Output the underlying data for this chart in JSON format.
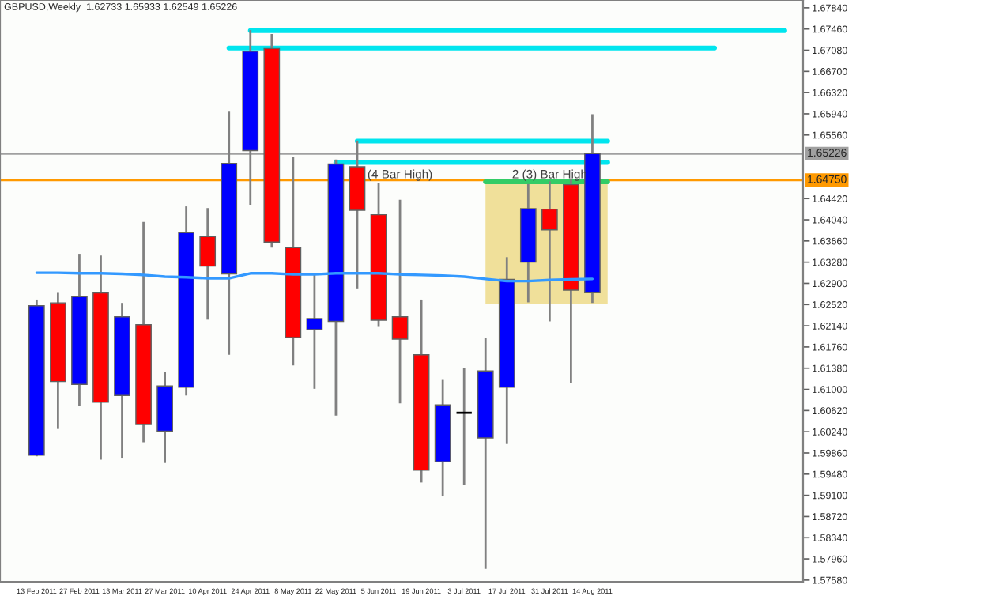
{
  "chart_data": {
    "type": "candlestick",
    "title": "GBPUSD,Weekly  1.62733 1.65933 1.62549 1.65226",
    "x": [
      "2011-02-13",
      "2011-02-20",
      "2011-02-27",
      "2011-03-06",
      "2011-03-13",
      "2011-03-20",
      "2011-03-27",
      "2011-04-03",
      "2011-04-10",
      "2011-04-17",
      "2011-04-24",
      "2011-05-01",
      "2011-05-08",
      "2011-05-15",
      "2011-05-22",
      "2011-05-29",
      "2011-06-05",
      "2011-06-12",
      "2011-06-19",
      "2011-06-26",
      "2011-07-03",
      "2011-07-10",
      "2011-07-17",
      "2011-07-24",
      "2011-07-31",
      "2011-08-07",
      "2011-08-14"
    ],
    "ohlc": [
      [
        1.5982,
        1.6261,
        1.598,
        1.625
      ],
      [
        1.6255,
        1.6273,
        1.6029,
        1.6114
      ],
      [
        1.6109,
        1.6343,
        1.607,
        1.6266
      ],
      [
        1.6273,
        1.634,
        1.5974,
        1.6077
      ],
      [
        1.6089,
        1.6255,
        1.5976,
        1.623
      ],
      [
        1.6216,
        1.64,
        1.6005,
        1.6037
      ],
      [
        1.6025,
        1.6131,
        1.5968,
        1.6106
      ],
      [
        1.6104,
        1.6428,
        1.6089,
        1.6381
      ],
      [
        1.6374,
        1.6425,
        1.6225,
        1.6321
      ],
      [
        1.6307,
        1.6598,
        1.6162,
        1.6505
      ],
      [
        1.6528,
        1.6744,
        1.6431,
        1.6706
      ],
      [
        1.6711,
        1.6737,
        1.6354,
        1.6364
      ],
      [
        1.6354,
        1.6516,
        1.6143,
        1.6193
      ],
      [
        1.6207,
        1.6306,
        1.6101,
        1.6227
      ],
      [
        1.6222,
        1.6512,
        1.6053,
        1.6504
      ],
      [
        1.6499,
        1.6546,
        1.6281,
        1.6421
      ],
      [
        1.6413,
        1.647,
        1.6212,
        1.6224
      ],
      [
        1.623,
        1.644,
        1.6075,
        1.619
      ],
      [
        1.6162,
        1.6261,
        1.5933,
        1.5955
      ],
      [
        1.597,
        1.6117,
        1.5908,
        1.6072
      ],
      [
        1.6058,
        1.6138,
        1.5928,
        1.6058
      ],
      [
        1.6013,
        1.6193,
        1.5778,
        1.6133
      ],
      [
        1.6104,
        1.6337,
        1.6002,
        1.6297
      ],
      [
        1.6328,
        1.6468,
        1.6256,
        1.6424
      ],
      [
        1.6423,
        1.6473,
        1.6222,
        1.6386
      ],
      [
        1.6467,
        1.6478,
        1.6111,
        1.6278
      ],
      [
        1.62733,
        1.65933,
        1.62549,
        1.65226
      ]
    ],
    "colors": [
      "#0000ff",
      "#ff0000",
      "#0000ff",
      "#ff0000",
      "#0000ff",
      "#ff0000",
      "#0000ff",
      "#0000ff",
      "#ff0000",
      "#0000ff",
      "#0000ff",
      "#ff0000",
      "#ff0000",
      "#0000ff",
      "#0000ff",
      "#ff0000",
      "#ff0000",
      "#ff0000",
      "#ff0000",
      "#0000ff",
      "#000000",
      "#0000ff",
      "#0000ff",
      "#0000ff",
      "#ff0000",
      "#ff0000",
      "#0000ff"
    ],
    "series": [
      {
        "type": "bar",
        "color": "#f0e09a",
        "x": [
          "2011-07-30"
        ],
        "base": [
          1.6253
        ],
        "values": [
          0.0219
        ]
      },
      {
        "type": "line",
        "color": "#3399ff",
        "values": [
          1.6309,
          1.6309,
          1.6308,
          1.6308,
          1.6307,
          1.6305,
          1.6302,
          1.6301,
          1.6299,
          1.6299,
          1.6308,
          1.6308,
          1.6306,
          1.6306,
          1.6308,
          1.6308,
          1.6308,
          1.6306,
          1.6305,
          1.6304,
          1.6302,
          1.6298,
          1.6294,
          1.6294,
          1.6296,
          1.6297,
          1.6298
        ]
      },
      {
        "type": "line",
        "color": "#00e5ee",
        "x": [
          "2011-04-24",
          "2011-10-16"
        ],
        "values": [
          1.6743,
          1.6743
        ]
      },
      {
        "type": "line",
        "color": "#00e5ee",
        "x": [
          "2011-04-17",
          "2011-09-23"
        ],
        "values": [
          1.6712,
          1.6712
        ]
      },
      {
        "type": "line",
        "color": "#00e5ee",
        "x": [
          "2011-05-29",
          "2011-08-19"
        ],
        "values": [
          1.6545,
          1.6545
        ]
      },
      {
        "type": "line",
        "color": "#00e5ee",
        "x": [
          "2011-05-22",
          "2011-08-19"
        ],
        "values": [
          1.6507,
          1.6507
        ]
      },
      {
        "type": "line",
        "color": "#33cc66",
        "x": [
          "2011-07-10",
          "2011-08-19"
        ],
        "values": [
          1.6472,
          1.6472
        ]
      }
    ],
    "ref_lines": [
      {
        "axis": "y",
        "value": 1.65226,
        "label": "1.65226",
        "color": "#a0a0a0"
      },
      {
        "axis": "y",
        "value": 1.6475,
        "label": "1.64750",
        "color": "#ff9900"
      }
    ],
    "annotations": [
      {
        "text": "(4 Bar High)",
        "x": "2011-06-12",
        "y": 1.6484
      },
      {
        "text": "2 (3) Bar High",
        "x": "2011-07-31",
        "y": 1.6484
      }
    ],
    "xlim": [
      "2011-02-01",
      "2011-10-22"
    ],
    "xticks": [
      {
        "value": "2011-02-13",
        "label": "13 Feb 2011"
      },
      {
        "value": "2011-02-27",
        "label": "27 Feb 2011"
      },
      {
        "value": "2011-03-13",
        "label": "13 Mar 2011"
      },
      {
        "value": "2011-03-27",
        "label": "27 Mar 2011"
      },
      {
        "value": "2011-04-10",
        "label": "10 Apr 2011"
      },
      {
        "value": "2011-04-24",
        "label": "24 Apr 2011"
      },
      {
        "value": "2011-05-08",
        "label": "8 May 2011"
      },
      {
        "value": "2011-05-22",
        "label": "22 May 2011"
      },
      {
        "value": "2011-06-05",
        "label": "5 Jun 2011"
      },
      {
        "value": "2011-06-19",
        "label": "19 Jun 2011"
      },
      {
        "value": "2011-07-03",
        "label": "3 Jul 2011"
      },
      {
        "value": "2011-07-17",
        "label": "17 Jul 2011"
      },
      {
        "value": "2011-07-31",
        "label": "31 Jul 2011"
      },
      {
        "value": "2011-08-14",
        "label": "14 Aug 2011"
      }
    ],
    "ylim": [
      1.5755,
      1.6798
    ],
    "yticks": [
      {
        "value": 1.6784,
        "label": "1.67840"
      },
      {
        "value": 1.6746,
        "label": "1.67460"
      },
      {
        "value": 1.6708,
        "label": "1.67080"
      },
      {
        "value": 1.667,
        "label": "1.66700"
      },
      {
        "value": 1.6632,
        "label": "1.66320"
      },
      {
        "value": 1.6594,
        "label": "1.65940"
      },
      {
        "value": 1.6556,
        "label": "1.65560"
      },
      {
        "value": 1.6442,
        "label": "1.64420"
      },
      {
        "value": 1.6404,
        "label": "1.64040"
      },
      {
        "value": 1.6366,
        "label": "1.63660"
      },
      {
        "value": 1.6328,
        "label": "1.63280"
      },
      {
        "value": 1.629,
        "label": "1.62900"
      },
      {
        "value": 1.6252,
        "label": "1.62520"
      },
      {
        "value": 1.6214,
        "label": "1.62140"
      },
      {
        "value": 1.6176,
        "label": "1.61760"
      },
      {
        "value": 1.6138,
        "label": "1.61380"
      },
      {
        "value": 1.61,
        "label": "1.61000"
      },
      {
        "value": 1.6062,
        "label": "1.60620"
      },
      {
        "value": 1.6024,
        "label": "1.60240"
      },
      {
        "value": 1.5986,
        "label": "1.59860"
      },
      {
        "value": 1.5948,
        "label": "1.59480"
      },
      {
        "value": 1.591,
        "label": "1.59100"
      },
      {
        "value": 1.5872,
        "label": "1.58720"
      },
      {
        "value": 1.5834,
        "label": "1.58340"
      },
      {
        "value": 1.5796,
        "label": "1.57960"
      },
      {
        "value": 1.5758,
        "label": "1.57580"
      }
    ]
  }
}
